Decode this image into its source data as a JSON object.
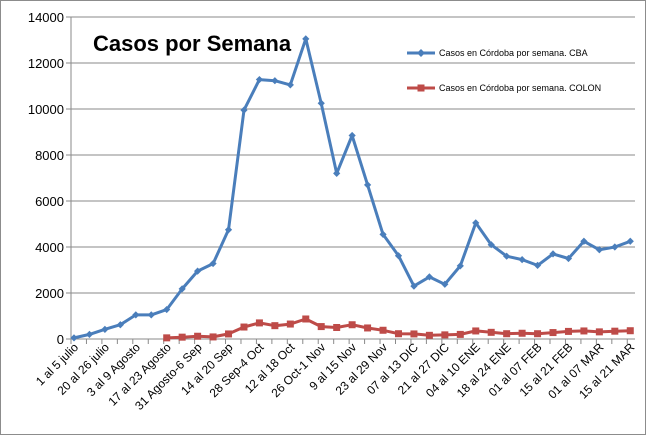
{
  "chart_data": {
    "type": "line",
    "title": "Casos por Semana",
    "xlabel": "",
    "ylabel": "",
    "ylim": [
      0,
      14000
    ],
    "yticks": [
      0,
      2000,
      4000,
      6000,
      8000,
      10000,
      12000,
      14000
    ],
    "grid": "horizontal",
    "legend_position": "top-right",
    "categories": [
      "1 al 5 julio",
      "",
      "20 al 26 julio",
      "",
      "3 al 9 Agosto",
      "",
      "17 al 23 Agosto",
      "",
      "31 Agosto-6 Sep",
      "",
      "14 al 20 Sep",
      "",
      "28 Sep-4 Oct",
      "",
      "12 al 18 Oct",
      "",
      "26 Oct-1 Nov",
      "",
      "9 al 15 Nov",
      "",
      "23 al 29 Nov",
      "",
      "07 al 13 DIC",
      "",
      "21 al 27 DIC",
      "",
      "04 al 10 ENE",
      "",
      "18 al 24 ENE",
      "",
      "01 al 07 FEB",
      "",
      "15 al 21 FEB",
      "",
      "01 al 07 MAR",
      "",
      "15 al 21 MAR"
    ],
    "series": [
      {
        "name": "Casos en Córdoba por semana. CBA",
        "color": "#4a7ebb",
        "marker": "diamond",
        "values": [
          50,
          200,
          420,
          620,
          1050,
          1050,
          1280,
          2180,
          2950,
          3280,
          4750,
          9950,
          11280,
          11230,
          11050,
          13050,
          10250,
          7200,
          8850,
          6700,
          4550,
          3620,
          2300,
          2700,
          2380,
          3180,
          5050,
          4100,
          3600,
          3450,
          3200,
          3700,
          3500,
          4250,
          3880,
          4000,
          4250
        ]
      },
      {
        "name": "Casos en Córdoba por semana. COLON",
        "color": "#be4b48",
        "marker": "square",
        "values": [
          null,
          null,
          null,
          null,
          null,
          null,
          50,
          80,
          120,
          90,
          220,
          520,
          700,
          580,
          650,
          870,
          540,
          500,
          620,
          480,
          380,
          230,
          220,
          160,
          180,
          200,
          350,
          290,
          230,
          250,
          230,
          280,
          330,
          350,
          310,
          340,
          360
        ]
      }
    ]
  }
}
